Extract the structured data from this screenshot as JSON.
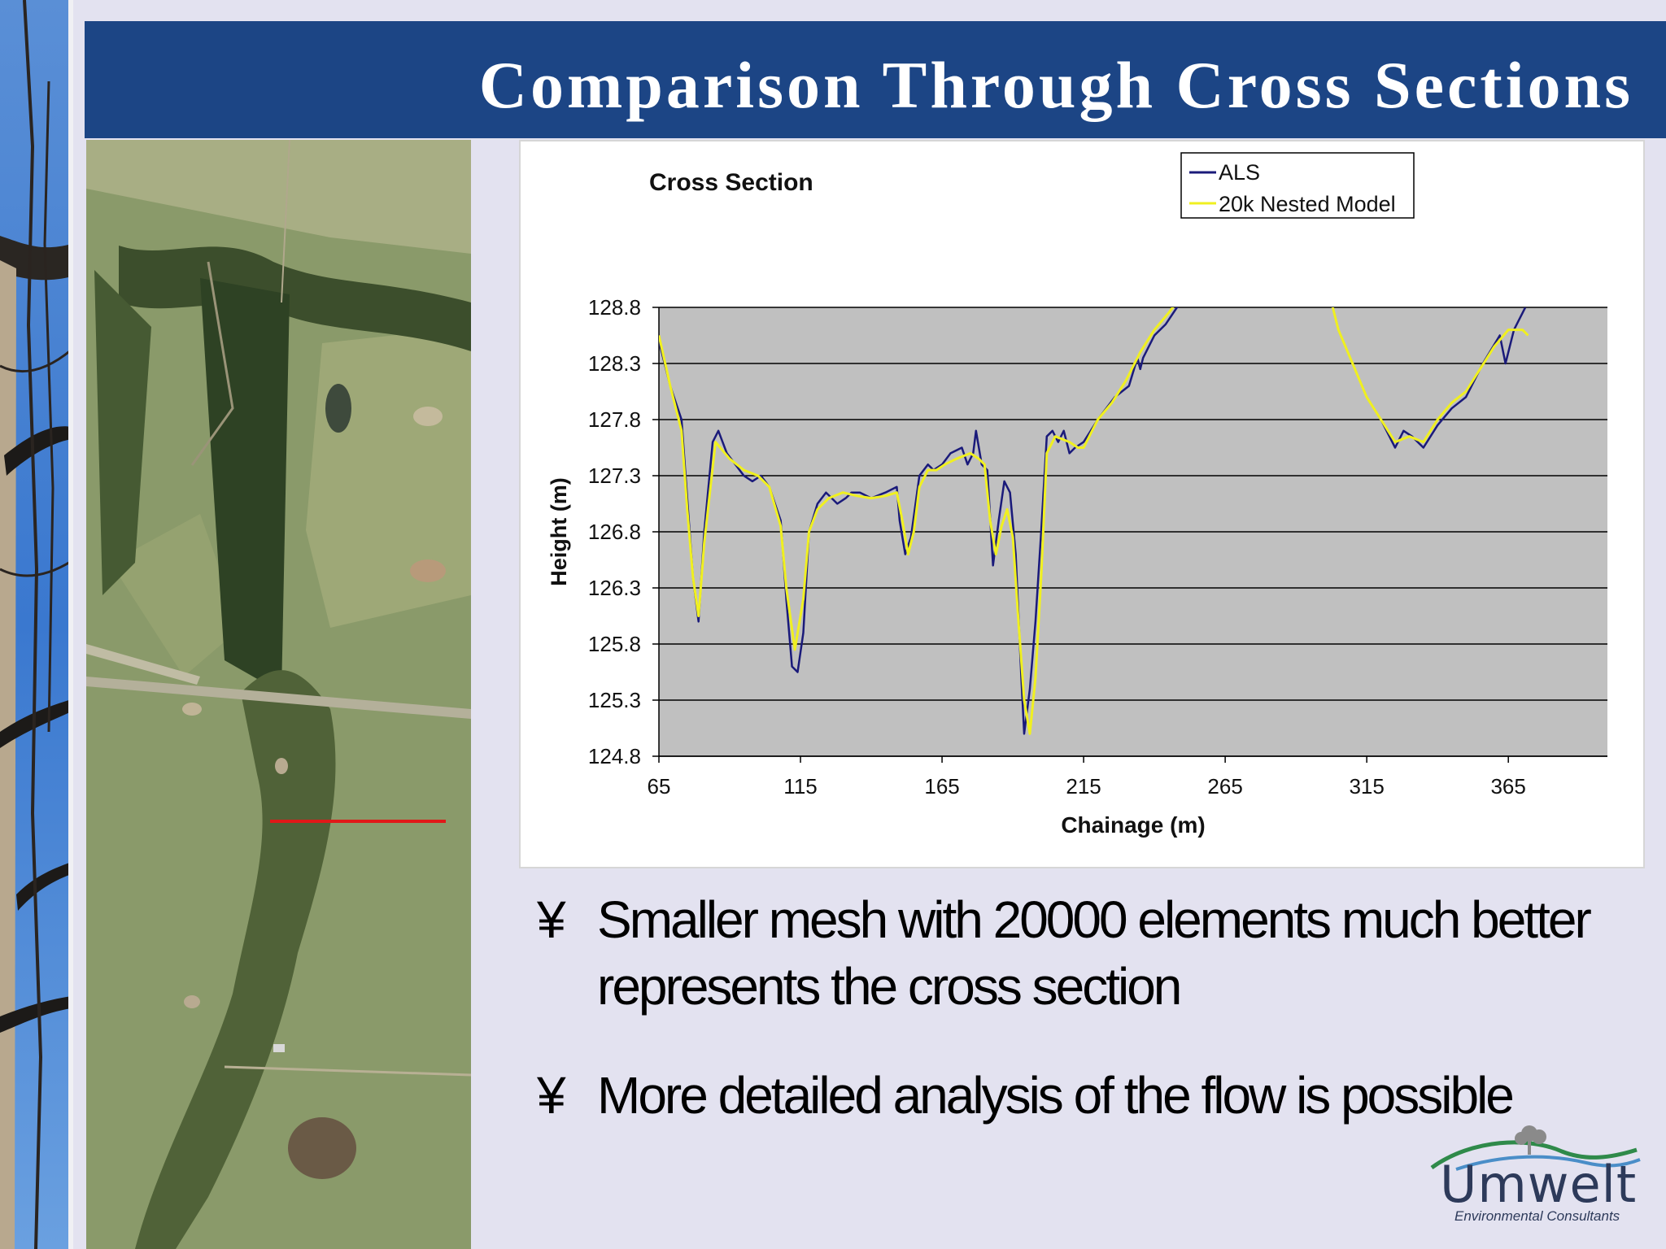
{
  "slide": {
    "title": "Comparison Through Cross Sections",
    "bullet_mark": "¥",
    "bullets": [
      "Smaller mesh with 20000 elements much better represents the cross section",
      "More detailed analysis of the flow is possible"
    ]
  },
  "logo": {
    "name": "Umwelt",
    "tagline": "Environmental Consultants"
  },
  "colors": {
    "title_bar": "#1c4585",
    "plot_area": "#c0c0c0",
    "als_line": "#1a1a7a",
    "model_line": "#f0f020",
    "section_line": "#e01818"
  },
  "chart_data": {
    "type": "line",
    "title": "Cross Section",
    "xlabel": "Chainage (m)",
    "ylabel": "Height (m)",
    "xlim": [
      65,
      400
    ],
    "ylim": [
      124.8,
      128.8
    ],
    "xticks": [
      "65",
      "115",
      "165",
      "215",
      "265",
      "315",
      "365"
    ],
    "yticks": [
      "128.8",
      "128.3",
      "127.8",
      "127.3",
      "126.8",
      "126.3",
      "125.8",
      "125.3",
      "124.8"
    ],
    "grid": true,
    "legend_position": "top-right",
    "series": [
      {
        "name": "ALS",
        "x": [
          65,
          69,
          73,
          75,
          77,
          79,
          81,
          84,
          86,
          89,
          92,
          95,
          98,
          101,
          104,
          108,
          110,
          112,
          114,
          116,
          118,
          121,
          124,
          128,
          131,
          133,
          136,
          140,
          145,
          149,
          150,
          152,
          154,
          157,
          160,
          162,
          165,
          168,
          172,
          174,
          176,
          177,
          179,
          181,
          183,
          185,
          187,
          189,
          191,
          193,
          194,
          196,
          198,
          200,
          202,
          204,
          206,
          208,
          210,
          212,
          215,
          220,
          226,
          231,
          234,
          235,
          236,
          240,
          244,
          248,
          254,
          301,
          305,
          310,
          315,
          320,
          325,
          328,
          331,
          335,
          340,
          345,
          350,
          356,
          362,
          364,
          367,
          371
        ],
        "y": [
          128.5,
          128.1,
          127.8,
          127.1,
          126.4,
          126.0,
          126.8,
          127.6,
          127.7,
          127.5,
          127.4,
          127.3,
          127.25,
          127.3,
          127.2,
          126.9,
          126.2,
          125.6,
          125.55,
          125.9,
          126.8,
          127.05,
          127.15,
          127.05,
          127.1,
          127.15,
          127.15,
          127.1,
          127.15,
          127.2,
          126.9,
          126.6,
          126.75,
          127.3,
          127.4,
          127.35,
          127.4,
          127.5,
          127.55,
          127.4,
          127.5,
          127.7,
          127.4,
          127.35,
          126.5,
          126.9,
          127.25,
          127.15,
          126.6,
          125.5,
          125.0,
          125.4,
          126.0,
          126.8,
          127.65,
          127.7,
          127.6,
          127.7,
          127.5,
          127.55,
          127.6,
          127.8,
          128.0,
          128.1,
          128.35,
          128.25,
          128.35,
          128.55,
          128.65,
          128.8,
          129.0,
          129.0,
          128.6,
          128.3,
          128.0,
          127.8,
          127.55,
          127.7,
          127.65,
          127.55,
          127.75,
          127.9,
          128.0,
          128.3,
          128.55,
          128.3,
          128.6,
          128.8
        ]
      },
      {
        "name": "20k Nested Model",
        "x": [
          65,
          69,
          73,
          75,
          77,
          79,
          81,
          85,
          90,
          95,
          100,
          104,
          108,
          110,
          113,
          116,
          118,
          121,
          125,
          130,
          135,
          140,
          145,
          149,
          151,
          153,
          155,
          157,
          160,
          163,
          166,
          170,
          175,
          178,
          180,
          182,
          184,
          186,
          188,
          190,
          192,
          194,
          196,
          198,
          200,
          202,
          205,
          210,
          213,
          215,
          220,
          225,
          230,
          235,
          240,
          245,
          248,
          254,
          301,
          305,
          310,
          315,
          320,
          325,
          330,
          335,
          340,
          345,
          350,
          355,
          360,
          365,
          370,
          372
        ],
        "y": [
          128.55,
          128.1,
          127.7,
          127.0,
          126.4,
          126.05,
          126.7,
          127.6,
          127.45,
          127.35,
          127.3,
          127.2,
          126.85,
          126.3,
          125.75,
          126.2,
          126.8,
          127.0,
          127.1,
          127.15,
          127.12,
          127.1,
          127.12,
          127.15,
          126.9,
          126.6,
          126.8,
          127.2,
          127.35,
          127.35,
          127.4,
          127.45,
          127.5,
          127.45,
          127.4,
          126.9,
          126.6,
          126.85,
          127.0,
          126.75,
          126.0,
          125.3,
          125.0,
          125.5,
          126.4,
          127.5,
          127.65,
          127.6,
          127.55,
          127.55,
          127.8,
          127.95,
          128.15,
          128.4,
          128.6,
          128.75,
          128.85,
          129.0,
          129.0,
          128.6,
          128.3,
          128.0,
          127.8,
          127.6,
          127.65,
          127.6,
          127.8,
          127.95,
          128.05,
          128.25,
          128.45,
          128.6,
          128.6,
          128.55
        ]
      }
    ]
  }
}
